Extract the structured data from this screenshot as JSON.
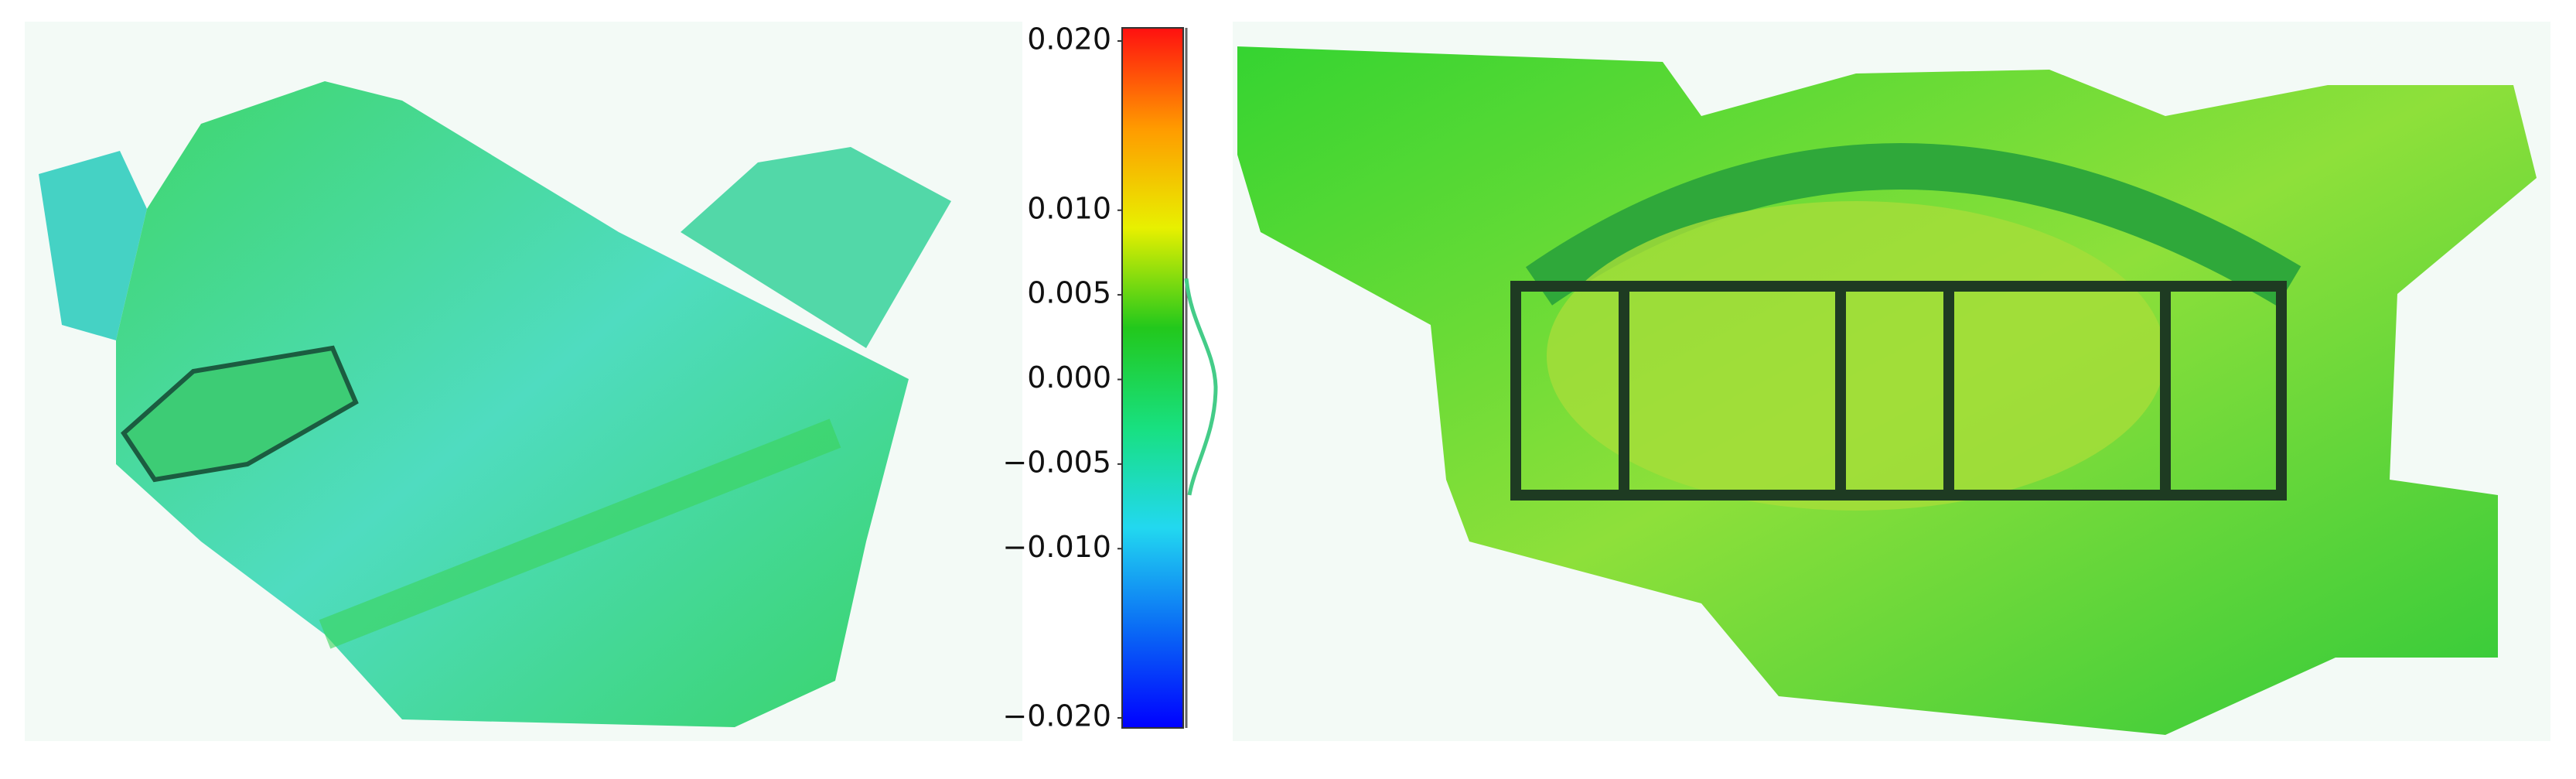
{
  "chart_data": {
    "type": "colorbar",
    "ylim": [
      -0.02,
      0.02
    ],
    "yticks": [
      {
        "value": 0.02,
        "label": "0.020"
      },
      {
        "value": 0.01,
        "label": "0.010"
      },
      {
        "value": 0.005,
        "label": "0.005"
      },
      {
        "value": 0,
        "label": "0.000"
      },
      {
        "value": -0.005,
        "label": "−0.005"
      },
      {
        "value": -0.01,
        "label": "−0.010"
      },
      {
        "value": -0.02,
        "label": "−0.020"
      }
    ],
    "colors": [
      "#0000ff",
      "#0a6cf5",
      "#22d8f0",
      "#18e080",
      "#22c81c",
      "#e8f000",
      "#ff9a00",
      "#ff1010"
    ]
  }
}
